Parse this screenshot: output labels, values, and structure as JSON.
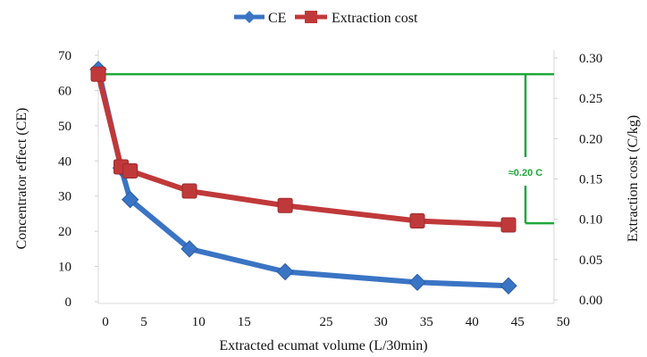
{
  "chart_data": {
    "type": "line",
    "title": "",
    "xlabel": "Extracted ecumat volume (L/30min)",
    "ylabel": "Concentrator effect (CE)",
    "y2label": "Extraction cost (C/kg)",
    "xlim": [
      0,
      50
    ],
    "ylim": [
      0,
      70
    ],
    "y2lim": [
      0,
      0.3
    ],
    "x_ticks": [
      "0",
      "5",
      "10",
      "15",
      "25",
      "30",
      "35",
      "40",
      "45",
      "50"
    ],
    "x_tick_values": [
      0,
      5,
      11,
      16,
      25,
      31,
      36,
      41,
      46,
      51
    ],
    "y_ticks": [
      "0",
      "10",
      "20",
      "30",
      "40",
      "50",
      "60",
      "70"
    ],
    "y2_ticks": [
      "0.00",
      "0.05",
      "0.10",
      "0.15",
      "0.20",
      "0.25",
      "0.30"
    ],
    "legend_position": "top",
    "series": [
      {
        "name": "CE",
        "axis": "left",
        "color": "#3a74c4",
        "marker": "diamond",
        "x": [
          0,
          2.5,
          3.5,
          10,
          20.5,
          35,
          45
        ],
        "values": [
          66,
          38,
          29,
          15,
          8.5,
          5.5,
          4.5
        ]
      },
      {
        "name": "Extraction cost",
        "axis": "right",
        "color": "#c0393a",
        "marker": "square",
        "x": [
          0,
          2.5,
          3.5,
          10,
          20.5,
          35,
          45
        ],
        "values": [
          0.28,
          0.165,
          0.16,
          0.135,
          0.117,
          0.098,
          0.093
        ]
      }
    ],
    "annotation": {
      "text": "≈0.20 C",
      "color": "#1ea83a",
      "from_cost": 0.28,
      "to_cost": 0.095
    }
  }
}
